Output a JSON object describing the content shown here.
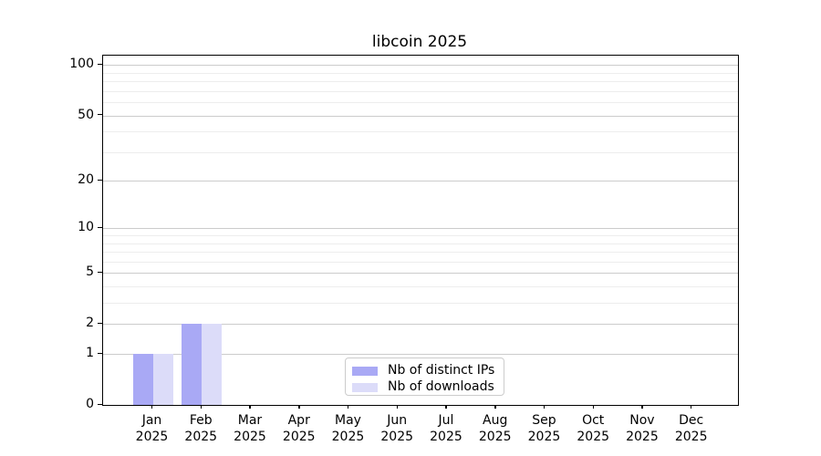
{
  "title": "libcoin 2025",
  "palette": {
    "distinct_ips": "#a9a9f5",
    "downloads": "#dcdcf9",
    "grid_major": "#cccccc",
    "grid_minor": "#ededed",
    "axis_line": "#000000",
    "text": "#000000",
    "legend_border": "#cccccc"
  },
  "chart_data": {
    "type": "bar",
    "title": "libcoin 2025",
    "categories": [
      "Jan 2025",
      "Feb 2025",
      "Mar 2025",
      "Apr 2025",
      "May 2025",
      "Jun 2025",
      "Jul 2025",
      "Aug 2025",
      "Sep 2025",
      "Oct 2025",
      "Nov 2025",
      "Dec 2025"
    ],
    "series": [
      {
        "name": "Nb of distinct IPs",
        "color": "#a9a9f5",
        "values": [
          1,
          2,
          0,
          0,
          0,
          0,
          0,
          0,
          0,
          0,
          0,
          0
        ]
      },
      {
        "name": "Nb of downloads",
        "color": "#dcdcf9",
        "values": [
          1,
          2,
          0,
          0,
          0,
          0,
          0,
          0,
          0,
          0,
          0,
          0
        ]
      }
    ],
    "xlabel": "",
    "ylabel": "",
    "yscale": "log1p",
    "ylim": [
      0,
      114
    ],
    "yticks": [
      0,
      1,
      2,
      5,
      10,
      20,
      50,
      100
    ],
    "yticks_minor": [
      3,
      4,
      6,
      7,
      8,
      9,
      30,
      40,
      60,
      70,
      80,
      90
    ],
    "grid": "both-horizontal",
    "legend_position": "lower center"
  }
}
